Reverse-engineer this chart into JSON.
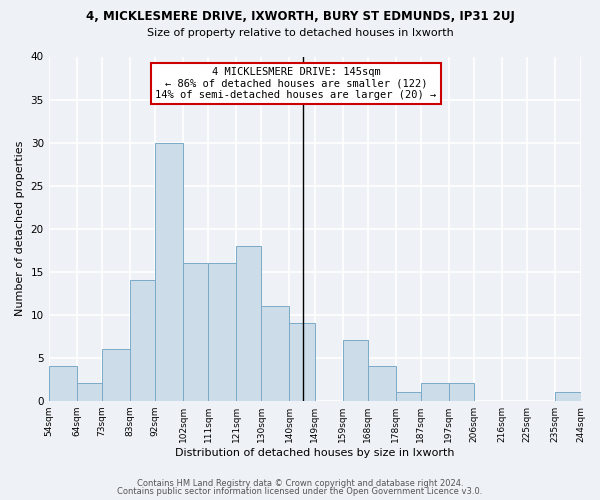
{
  "title": "4, MICKLESMERE DRIVE, IXWORTH, BURY ST EDMUNDS, IP31 2UJ",
  "subtitle": "Size of property relative to detached houses in Ixworth",
  "xlabel": "Distribution of detached houses by size in Ixworth",
  "ylabel": "Number of detached properties",
  "bar_color": "#cddce9",
  "bar_edge_color": "#7aaac8",
  "bins": [
    54,
    64,
    73,
    83,
    92,
    102,
    111,
    121,
    130,
    140,
    149,
    159,
    168,
    178,
    187,
    197,
    206,
    216,
    225,
    235,
    244
  ],
  "counts": [
    4,
    2,
    6,
    14,
    30,
    16,
    16,
    18,
    11,
    9,
    0,
    7,
    4,
    1,
    2,
    2,
    0,
    0,
    0,
    1
  ],
  "tick_labels": [
    "54sqm",
    "64sqm",
    "73sqm",
    "83sqm",
    "92sqm",
    "102sqm",
    "111sqm",
    "121sqm",
    "130sqm",
    "140sqm",
    "149sqm",
    "159sqm",
    "168sqm",
    "178sqm",
    "187sqm",
    "197sqm",
    "206sqm",
    "216sqm",
    "225sqm",
    "235sqm",
    "244sqm"
  ],
  "vline_x": 145,
  "annotation_title": "4 MICKLESMERE DRIVE: 145sqm",
  "annotation_line1": "← 86% of detached houses are smaller (122)",
  "annotation_line2": "14% of semi-detached houses are larger (20) →",
  "ylim": [
    0,
    40
  ],
  "yticks": [
    0,
    5,
    10,
    15,
    20,
    25,
    30,
    35,
    40
  ],
  "footer_line1": "Contains HM Land Registry data © Crown copyright and database right 2024.",
  "footer_line2": "Contains public sector information licensed under the Open Government Licence v3.0.",
  "background_color": "#eef2f6",
  "grid_color": "#ffffff"
}
